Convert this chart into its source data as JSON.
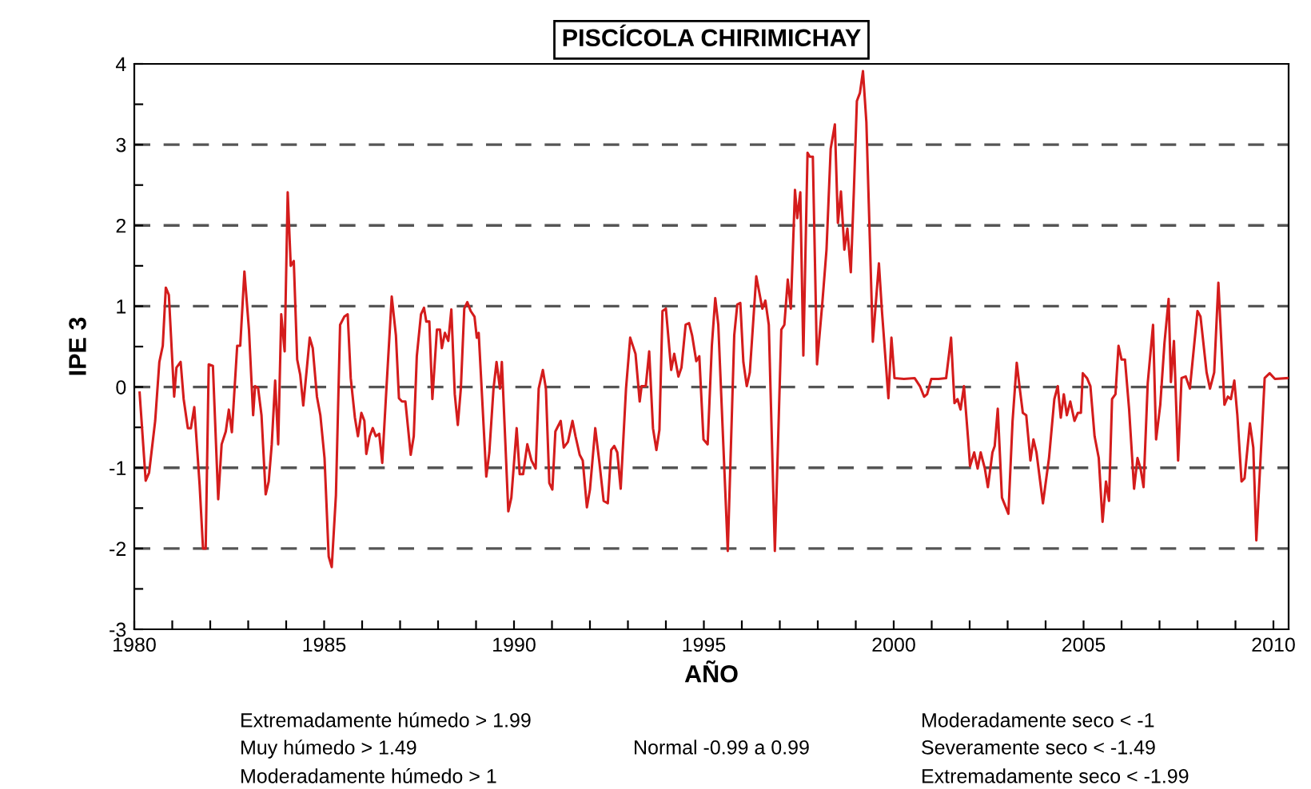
{
  "chart_data": {
    "type": "line",
    "title": "PISCÍCOLA CHIRIMICHAY",
    "xlabel": "AÑO",
    "ylabel": "IPE 3",
    "x": [
      1980.14,
      1980.3,
      1980.39,
      1980.55,
      1980.66,
      1980.75,
      1980.83,
      1980.91,
      1981.05,
      1981.11,
      1981.22,
      1981.3,
      1981.41,
      1981.49,
      1981.58,
      1981.72,
      1981.81,
      1981.88,
      1981.96,
      1982.07,
      1982.21,
      1982.3,
      1982.41,
      1982.49,
      1982.57,
      1982.71,
      1982.79,
      1982.9,
      1983.02,
      1983.13,
      1983.18,
      1983.26,
      1983.35,
      1983.46,
      1983.54,
      1983.62,
      1983.71,
      1983.79,
      1983.87,
      1983.96,
      1984.04,
      1984.12,
      1984.2,
      1984.29,
      1984.37,
      1984.45,
      1984.54,
      1984.62,
      1984.7,
      1984.81,
      1984.9,
      1985.01,
      1985.12,
      1985.2,
      1985.31,
      1985.42,
      1985.53,
      1985.62,
      1985.7,
      1985.81,
      1985.89,
      1985.98,
      1986.06,
      1986.11,
      1986.2,
      1986.28,
      1986.36,
      1986.45,
      1986.53,
      1986.64,
      1986.78,
      1986.89,
      1986.97,
      1987.05,
      1987.14,
      1987.28,
      1987.36,
      1987.44,
      1987.55,
      1987.63,
      1987.69,
      1987.77,
      1987.85,
      1987.97,
      1988.05,
      1988.1,
      1988.18,
      1988.27,
      1988.35,
      1988.44,
      1988.52,
      1988.6,
      1988.69,
      1988.77,
      1988.86,
      1988.96,
      1989.02,
      1989.07,
      1989.27,
      1989.35,
      1989.46,
      1989.54,
      1989.63,
      1989.68,
      1989.85,
      1989.93,
      1990.07,
      1990.15,
      1990.24,
      1990.35,
      1990.46,
      1990.57,
      1990.65,
      1990.76,
      1990.84,
      1990.93,
      1991.01,
      1991.09,
      1991.23,
      1991.31,
      1991.42,
      1991.54,
      1991.62,
      1991.73,
      1991.81,
      1991.92,
      1992.0,
      1992.14,
      1992.25,
      1992.36,
      1992.47,
      1992.56,
      1992.64,
      1992.72,
      1992.81,
      1992.95,
      1993.06,
      1993.2,
      1993.31,
      1993.36,
      1993.47,
      1993.56,
      1993.66,
      1993.75,
      1993.83,
      1993.91,
      1994.0,
      1994.14,
      1994.22,
      1994.33,
      1994.41,
      1994.52,
      1994.61,
      1994.69,
      1994.8,
      1994.88,
      1994.99,
      1995.1,
      1995.21,
      1995.3,
      1995.38,
      1995.63,
      1995.8,
      1995.88,
      1995.96,
      1996.04,
      1996.13,
      1996.21,
      1996.38,
      1996.54,
      1996.62,
      1996.71,
      1996.87,
      1997.04,
      1997.12,
      1997.21,
      1997.29,
      1997.4,
      1997.46,
      1997.54,
      1997.62,
      1997.73,
      1997.79,
      1997.87,
      1997.98,
      1998.12,
      1998.23,
      1998.34,
      1998.45,
      1998.53,
      1998.61,
      1998.7,
      1998.78,
      1998.87,
      1998.95,
      1999.03,
      1999.11,
      1999.19,
      1999.28,
      1999.45,
      1999.61,
      1999.69,
      1999.86,
      1999.94,
      2000.02,
      2000.27,
      2000.55,
      2000.69,
      2000.8,
      2000.88,
      2000.99,
      2001.18,
      2001.38,
      2001.51,
      2001.6,
      2001.68,
      2001.76,
      2001.85,
      2001.96,
      2002.01,
      2002.12,
      2002.21,
      2002.29,
      2002.4,
      2002.48,
      2002.6,
      2002.66,
      2002.74,
      2002.85,
      2003.02,
      2003.13,
      2003.24,
      2003.32,
      2003.4,
      2003.49,
      2003.6,
      2003.68,
      2003.76,
      2003.93,
      2004.09,
      2004.23,
      2004.32,
      2004.4,
      2004.48,
      2004.56,
      2004.65,
      2004.76,
      2004.85,
      2004.93,
      2004.98,
      2005.09,
      2005.18,
      2005.29,
      2005.4,
      2005.5,
      2005.59,
      2005.67,
      2005.75,
      2005.84,
      2005.92,
      2006.0,
      2006.09,
      2006.2,
      2006.33,
      2006.42,
      2006.5,
      2006.58,
      2006.69,
      2006.83,
      2006.91,
      2007.02,
      2007.13,
      2007.24,
      2007.3,
      2007.38,
      2007.49,
      2007.58,
      2007.69,
      2007.8,
      2008.0,
      2008.08,
      2008.24,
      2008.33,
      2008.44,
      2008.55,
      2008.71,
      2008.8,
      2008.88,
      2008.97,
      2009.05,
      2009.16,
      2009.24,
      2009.38,
      2009.47,
      2009.55,
      2009.77,
      2009.9,
      2010.04,
      2010.37
    ],
    "series": [
      {
        "color": "#d41c1c",
        "values": [
          -0.07,
          -1.16,
          -1.06,
          -0.42,
          0.31,
          0.51,
          1.23,
          1.14,
          -0.12,
          0.24,
          0.31,
          -0.15,
          -0.51,
          -0.51,
          -0.25,
          -1.21,
          -2.0,
          -2.0,
          0.28,
          0.26,
          -1.39,
          -0.71,
          -0.55,
          -0.28,
          -0.56,
          0.51,
          0.51,
          1.43,
          0.71,
          -0.35,
          0.01,
          -0.01,
          -0.35,
          -1.33,
          -1.17,
          -0.71,
          0.08,
          -0.71,
          0.9,
          0.44,
          2.41,
          1.5,
          1.56,
          0.34,
          0.15,
          -0.23,
          0.21,
          0.61,
          0.48,
          -0.12,
          -0.35,
          -0.88,
          -2.1,
          -2.23,
          -1.34,
          0.77,
          0.87,
          0.9,
          0.11,
          -0.38,
          -0.61,
          -0.32,
          -0.42,
          -0.83,
          -0.61,
          -0.51,
          -0.61,
          -0.58,
          -0.94,
          -0.02,
          1.12,
          0.64,
          -0.14,
          -0.18,
          -0.18,
          -0.84,
          -0.61,
          0.38,
          0.9,
          0.98,
          0.81,
          0.81,
          -0.15,
          0.71,
          0.71,
          0.48,
          0.67,
          0.57,
          0.96,
          -0.09,
          -0.47,
          -0.02,
          0.97,
          1.05,
          0.94,
          0.87,
          0.61,
          0.67,
          -1.11,
          -0.81,
          -0.02,
          0.31,
          -0.02,
          0.31,
          -1.54,
          -1.37,
          -0.51,
          -1.08,
          -1.08,
          -0.71,
          -0.91,
          -1.01,
          -0.02,
          0.21,
          -0.02,
          -1.19,
          -1.27,
          -0.55,
          -0.42,
          -0.75,
          -0.68,
          -0.42,
          -0.61,
          -0.84,
          -0.91,
          -1.49,
          -1.27,
          -0.51,
          -0.94,
          -1.41,
          -1.44,
          -0.78,
          -0.73,
          -0.81,
          -1.26,
          -0.02,
          0.61,
          0.41,
          -0.18,
          0.01,
          0.01,
          0.44,
          -0.51,
          -0.78,
          -0.53,
          0.94,
          0.97,
          0.21,
          0.41,
          0.13,
          0.24,
          0.77,
          0.79,
          0.64,
          0.32,
          0.38,
          -0.65,
          -0.71,
          0.51,
          1.1,
          0.77,
          -2.03,
          0.64,
          1.02,
          1.04,
          0.31,
          0.01,
          0.18,
          1.37,
          0.97,
          1.07,
          0.77,
          -2.03,
          0.71,
          0.77,
          1.33,
          0.97,
          2.44,
          2.09,
          2.41,
          0.39,
          2.9,
          2.85,
          2.85,
          0.28,
          1.04,
          1.7,
          2.95,
          3.25,
          2.03,
          2.42,
          1.7,
          1.96,
          1.42,
          2.42,
          3.54,
          3.64,
          3.91,
          3.28,
          0.56,
          1.53,
          0.94,
          -0.14,
          0.61,
          0.11,
          0.1,
          0.11,
          0.01,
          -0.12,
          -0.09,
          0.1,
          0.1,
          0.11,
          0.61,
          -0.2,
          -0.15,
          -0.28,
          0.01,
          -0.65,
          -0.98,
          -0.81,
          -1.01,
          -0.81,
          -1.01,
          -1.24,
          -0.81,
          -0.73,
          -0.27,
          -1.37,
          -1.57,
          -0.42,
          0.3,
          -0.02,
          -0.32,
          -0.35,
          -0.91,
          -0.65,
          -0.81,
          -1.44,
          -0.88,
          -0.15,
          0.01,
          -0.38,
          -0.09,
          -0.35,
          -0.18,
          -0.42,
          -0.32,
          -0.32,
          0.17,
          0.11,
          0.01,
          -0.61,
          -0.88,
          -1.67,
          -1.17,
          -1.41,
          -0.15,
          -0.09,
          0.51,
          0.34,
          0.34,
          -0.28,
          -1.26,
          -0.88,
          -1.01,
          -1.24,
          0.05,
          0.77,
          -0.65,
          -0.22,
          0.54,
          1.09,
          0.06,
          0.57,
          -0.91,
          0.11,
          0.13,
          -0.02,
          0.94,
          0.87,
          0.18,
          -0.02,
          0.18,
          1.29,
          -0.22,
          -0.12,
          -0.15,
          0.08,
          -0.35,
          -1.17,
          -1.13,
          -0.45,
          -0.75,
          -1.9,
          0.11,
          0.17,
          0.1,
          0.11
        ]
      }
    ],
    "xlim": [
      1980,
      2010.4
    ],
    "xticks": [
      1980,
      {
        "value": 1981,
        "label": null
      },
      {
        "value": 1982,
        "label": null
      },
      {
        "value": 1983,
        "label": null
      },
      {
        "value": 1984,
        "label": null
      },
      1985,
      {
        "value": 1986,
        "label": null
      },
      {
        "value": 1987,
        "label": null
      },
      {
        "value": 1988,
        "label": null
      },
      {
        "value": 1989,
        "label": null
      },
      1990,
      {
        "value": 1991,
        "label": null
      },
      {
        "value": 1992,
        "label": null
      },
      {
        "value": 1993,
        "label": null
      },
      {
        "value": 1994,
        "label": null
      },
      1995,
      {
        "value": 1996,
        "label": null
      },
      {
        "value": 1997,
        "label": null
      },
      {
        "value": 1998,
        "label": null
      },
      {
        "value": 1999,
        "label": null
      },
      2000,
      {
        "value": 2001,
        "label": null
      },
      {
        "value": 2002,
        "label": null
      },
      {
        "value": 2003,
        "label": null
      },
      {
        "value": 2004,
        "label": null
      },
      2005,
      {
        "value": 2006,
        "label": null
      },
      {
        "value": 2007,
        "label": null
      },
      {
        "value": 2008,
        "label": null
      },
      {
        "value": 2009,
        "label": null
      },
      2010
    ],
    "ylim": [
      -3,
      4
    ],
    "yticks": [
      -3,
      {
        "value": -2.5,
        "label": null
      },
      -2,
      {
        "value": -1.5,
        "label": null
      },
      -1,
      {
        "value": -0.5,
        "label": null
      },
      0,
      {
        "value": 0.5,
        "label": null
      },
      1,
      {
        "value": 1.5,
        "label": null
      },
      2,
      {
        "value": 2.5,
        "label": null
      },
      3,
      {
        "value": 3.5,
        "label": null
      },
      4
    ],
    "grid": "y",
    "line_style": "solid",
    "marker": "none",
    "annotations": [
      "Extremadamente húmedo > 1.99",
      "Muy húmedo > 1.49",
      "Moderadamente húmedo > 1",
      "Normal -0.99 a 0.99",
      "Moderadamente seco < -1",
      "Severamente seco < -1.49",
      "Extremadamente seco < -1.99"
    ]
  }
}
